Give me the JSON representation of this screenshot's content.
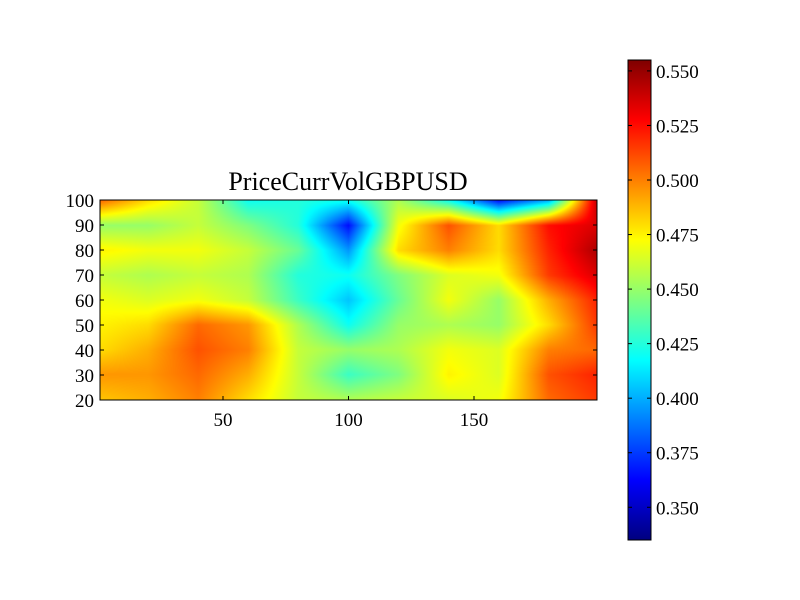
{
  "chart_data": {
    "type": "heatmap",
    "title": "PriceCurrVolGBPUSD",
    "xlabel": "",
    "ylabel": "",
    "xlim": [
      1,
      199
    ],
    "ylim": [
      20,
      100
    ],
    "x_ticks": [
      50,
      100,
      150
    ],
    "y_ticks": [
      20,
      30,
      40,
      50,
      60,
      70,
      80,
      90,
      100
    ],
    "colormap": "jet",
    "colorbar": {
      "range": [
        0.335,
        0.555
      ],
      "ticks": [
        "0.350",
        "0.375",
        "0.400",
        "0.425",
        "0.450",
        "0.475",
        "0.500",
        "0.525",
        "0.550"
      ]
    },
    "x": [
      1,
      20,
      40,
      60,
      80,
      100,
      120,
      140,
      160,
      180,
      199
    ],
    "y": [
      20,
      30,
      40,
      50,
      60,
      70,
      80,
      90,
      100
    ],
    "z": [
      [
        0.485,
        0.49,
        0.5,
        0.48,
        0.46,
        0.455,
        0.46,
        0.465,
        0.47,
        0.505,
        0.515
      ],
      [
        0.495,
        0.495,
        0.505,
        0.49,
        0.46,
        0.43,
        0.445,
        0.475,
        0.465,
        0.51,
        0.52
      ],
      [
        0.48,
        0.49,
        0.51,
        0.5,
        0.46,
        0.45,
        0.455,
        0.47,
        0.465,
        0.5,
        0.505
      ],
      [
        0.475,
        0.48,
        0.505,
        0.495,
        0.455,
        0.42,
        0.45,
        0.455,
        0.45,
        0.48,
        0.515
      ],
      [
        0.47,
        0.465,
        0.47,
        0.46,
        0.43,
        0.405,
        0.44,
        0.47,
        0.45,
        0.49,
        0.52
      ],
      [
        0.46,
        0.455,
        0.46,
        0.455,
        0.425,
        0.42,
        0.445,
        0.465,
        0.47,
        0.515,
        0.535
      ],
      [
        0.475,
        0.47,
        0.47,
        0.46,
        0.44,
        0.395,
        0.48,
        0.5,
        0.48,
        0.52,
        0.545
      ],
      [
        0.45,
        0.45,
        0.46,
        0.445,
        0.425,
        0.365,
        0.47,
        0.51,
        0.48,
        0.525,
        0.535
      ],
      [
        0.505,
        0.48,
        0.46,
        0.42,
        0.425,
        0.42,
        0.455,
        0.42,
        0.365,
        0.4,
        0.54
      ]
    ]
  }
}
